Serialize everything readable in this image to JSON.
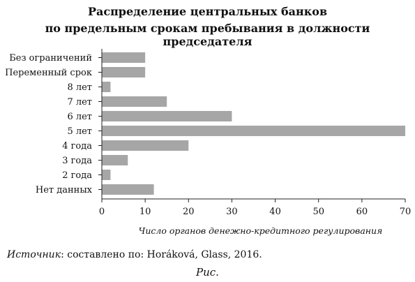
{
  "title_line1": "Распределение центральных банков",
  "title_line2": "по предельным срокам пребывания в должности председателя",
  "source_label": "Источник",
  "source_text": ": составлено по: Horáková, Glass, 2016.",
  "caption": "Рис.",
  "chart_data": {
    "type": "bar",
    "orientation": "horizontal",
    "categories": [
      "Без ограничений",
      "Переменный срок",
      "8 лет",
      "7 лет",
      "6 лет",
      "5 лет",
      "4 года",
      "3 года",
      "2 года",
      "Нет данных"
    ],
    "values": [
      10,
      10,
      2,
      15,
      30,
      70,
      20,
      6,
      2,
      12
    ],
    "xlabel": "Число органов денежно-кредитного регулирования",
    "xlim": [
      0,
      70
    ],
    "xticks": [
      0,
      10,
      20,
      30,
      40,
      50,
      60,
      70
    ],
    "bar_color": "#a6a6a6",
    "grid": false
  }
}
